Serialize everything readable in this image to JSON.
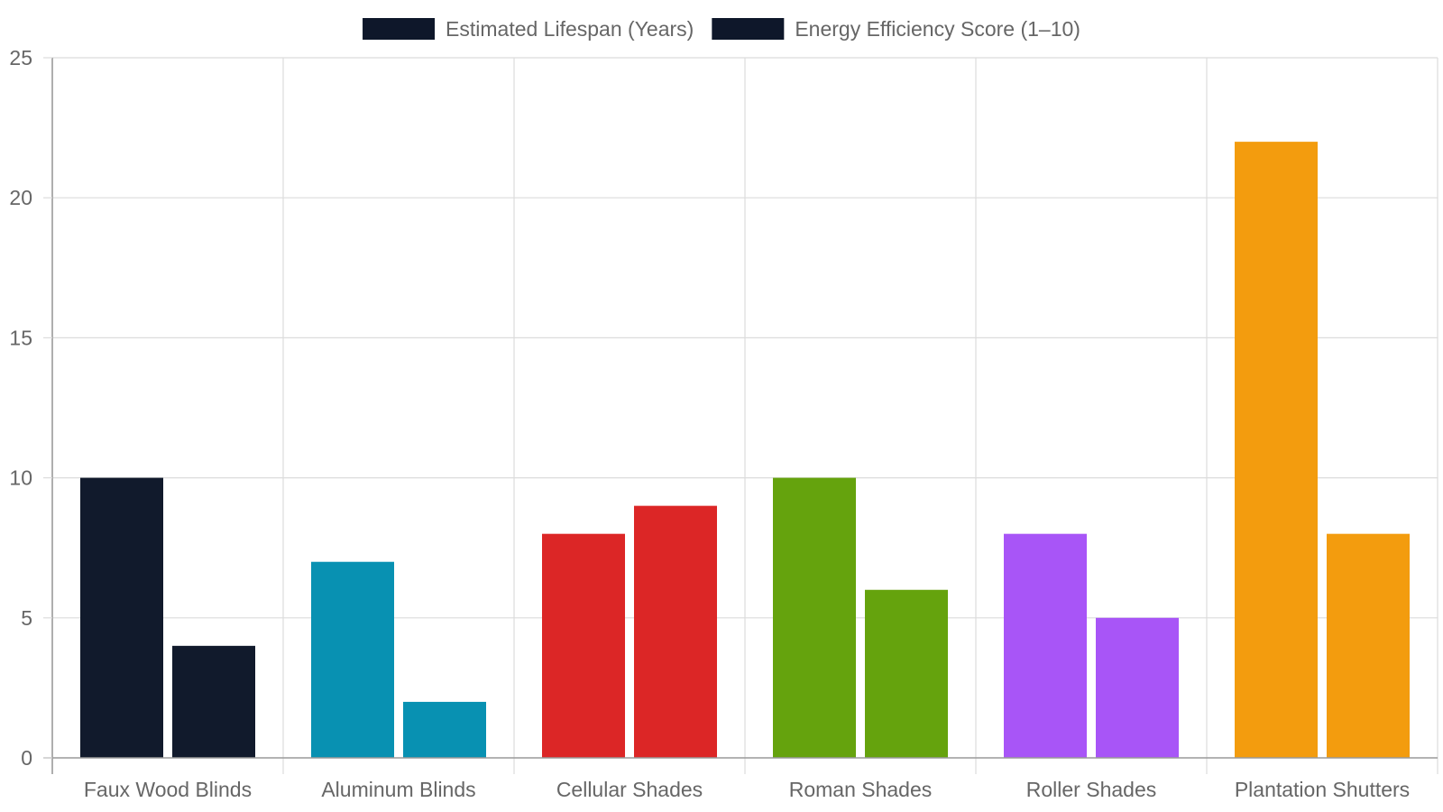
{
  "chart_data": {
    "type": "bar",
    "title": "",
    "xlabel": "",
    "ylabel": "",
    "categories": [
      "Faux Wood Blinds",
      "Aluminum Blinds",
      "Cellular Shades",
      "Roman Shades",
      "Roller Shades",
      "Plantation Shutters"
    ],
    "series": [
      {
        "name": "Estimated Lifespan (Years)",
        "values": [
          10,
          7,
          8,
          10,
          8,
          22
        ]
      },
      {
        "name": "Energy Efficiency Score (1–10)",
        "values": [
          4,
          2,
          9,
          6,
          5,
          8
        ]
      }
    ],
    "category_colors": [
      "#111a2c",
      "#0891b2",
      "#dc2626",
      "#65a30d",
      "#a855f7",
      "#f39c0e"
    ],
    "legend_swatch_color": "#0e172a",
    "ylim": [
      0,
      25
    ],
    "yticks": [
      0,
      5,
      10,
      15,
      20,
      25
    ],
    "grid": true,
    "legend_position": "top-center"
  }
}
